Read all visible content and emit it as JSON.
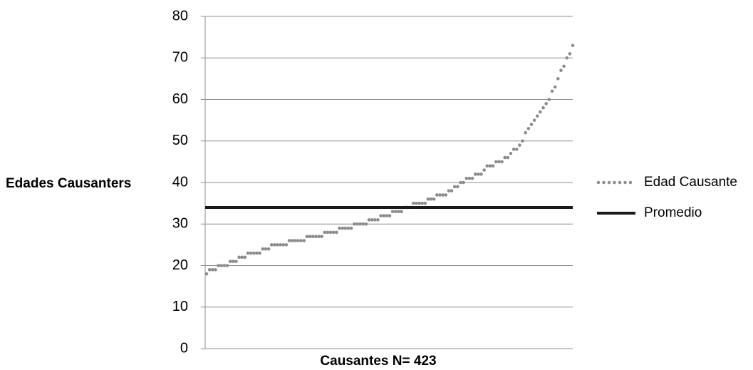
{
  "chart_data": {
    "type": "scatter",
    "xlabel": "Causantes N= 423",
    "ylabel": "Edades Causanters",
    "ylim": [
      0,
      80
    ],
    "y_ticks": [
      0,
      10,
      20,
      30,
      40,
      50,
      60,
      70,
      80
    ],
    "grid": true,
    "legend_position": "right",
    "n_points": 423,
    "series": [
      {
        "name": "Edad Causante",
        "style": "dotted",
        "color": "#8c8c8c",
        "values": [
          18,
          19,
          19,
          19,
          20,
          20,
          20,
          20,
          21,
          21,
          21,
          22,
          22,
          22,
          23,
          23,
          23,
          23,
          23,
          24,
          24,
          24,
          25,
          25,
          25,
          25,
          25,
          25,
          26,
          26,
          26,
          26,
          26,
          26,
          27,
          27,
          27,
          27,
          27,
          27,
          28,
          28,
          28,
          28,
          28,
          29,
          29,
          29,
          29,
          29,
          30,
          30,
          30,
          30,
          30,
          31,
          31,
          31,
          31,
          32,
          32,
          32,
          32,
          33,
          33,
          33,
          33,
          34,
          34,
          34,
          35,
          35,
          35,
          35,
          35,
          36,
          36,
          36,
          37,
          37,
          37,
          37,
          38,
          38,
          39,
          39,
          40,
          40,
          41,
          41,
          41,
          42,
          42,
          42,
          43,
          44,
          44,
          44,
          45,
          45,
          45,
          46,
          46,
          47,
          48,
          48,
          49,
          50,
          52,
          53,
          54,
          55,
          56,
          57,
          58,
          59,
          60,
          62,
          63,
          65,
          67,
          68,
          70,
          71,
          73
        ]
      },
      {
        "name": "Promedio",
        "style": "solid",
        "color": "#1a1a1a",
        "value": 34
      }
    ]
  }
}
